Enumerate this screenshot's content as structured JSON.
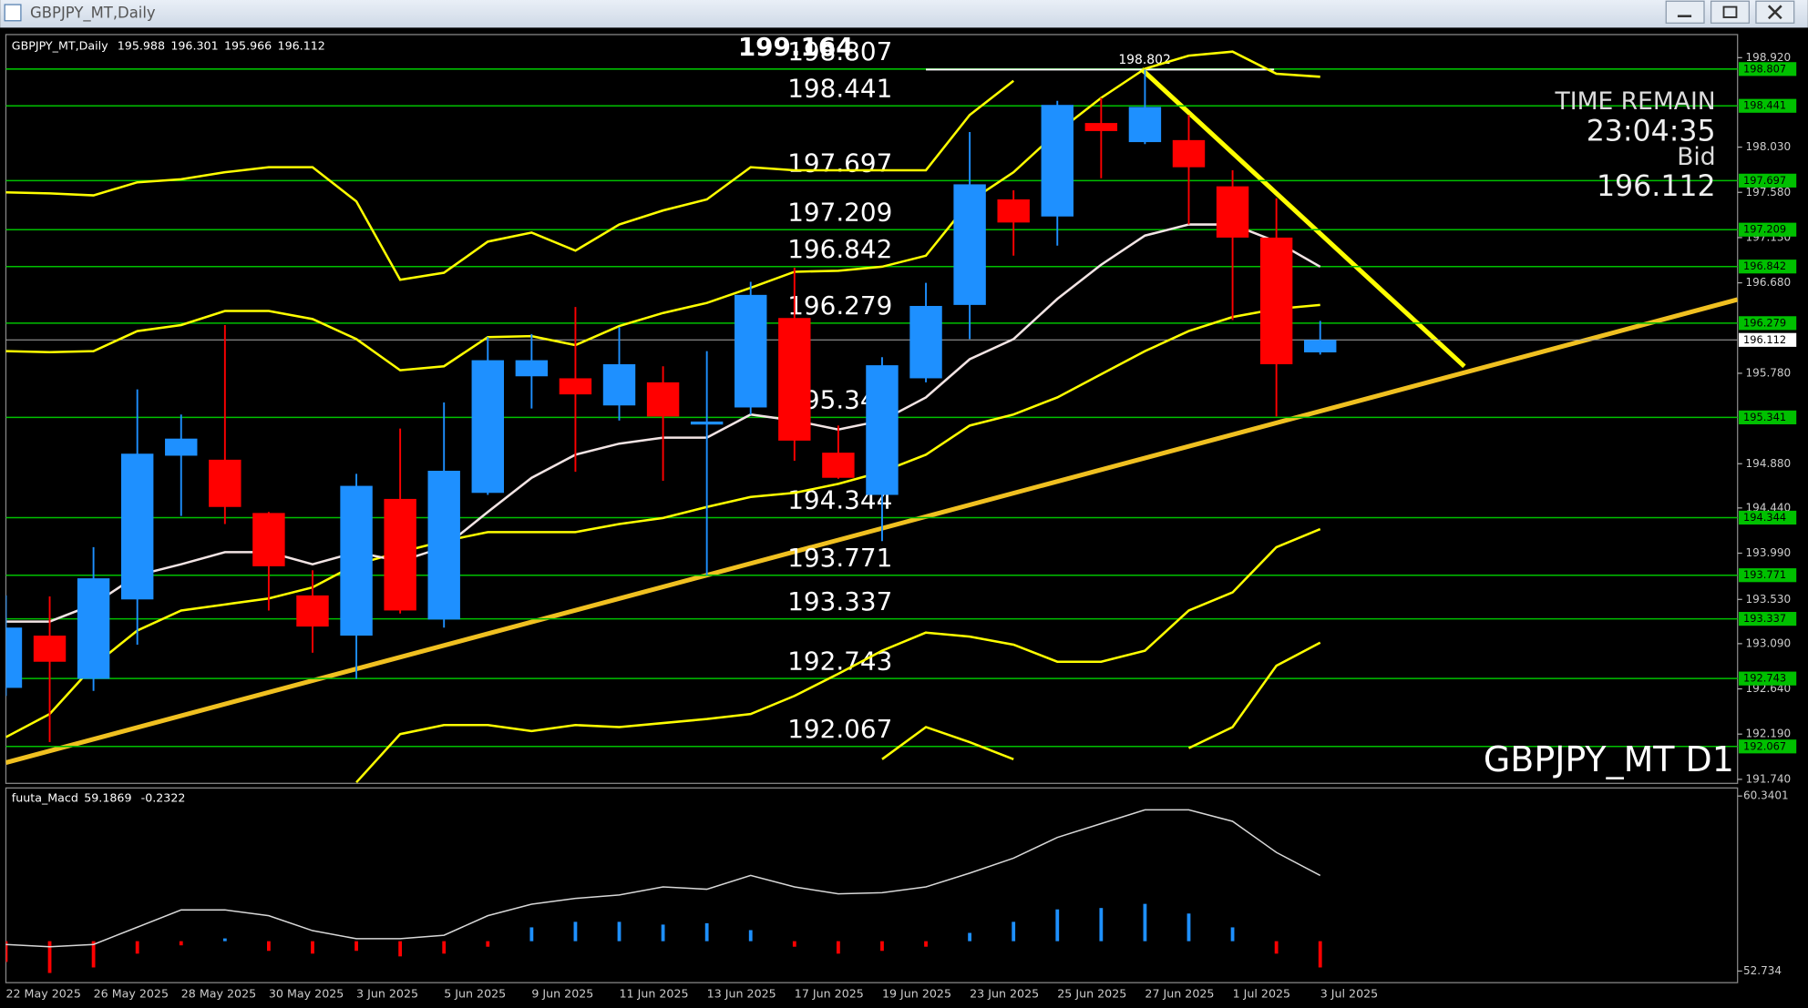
{
  "chart_data": [
    {
      "type": "candlestick",
      "title": "GBPJPY_MT,Daily",
      "categories": [
        "22 May 2025",
        null,
        "26 May 2025",
        null,
        "28 May 2025",
        null,
        "30 May 2025",
        null,
        "3 Jun 2025",
        null,
        "5 Jun 2025",
        null,
        "9 Jun 2025",
        null,
        "11 Jun 2025",
        null,
        "13 Jun 2025",
        null,
        "17 Jun 2025",
        null,
        "19 Jun 2025",
        null,
        "23 Jun 2025",
        null,
        "25 Jun 2025",
        null,
        "27 Jun 2025",
        null,
        "1 Jul 2025",
        null,
        "3 Jul 2025"
      ],
      "open": [
        192.65,
        193.17,
        192.74,
        193.53,
        194.96,
        194.92,
        194.39,
        193.57,
        193.17,
        194.53,
        193.33,
        194.59,
        195.75,
        195.73,
        195.46,
        195.69,
        195.27,
        195.44,
        196.33,
        194.99,
        194.57,
        195.73,
        196.46,
        197.51,
        197.34,
        198.27,
        198.08,
        198.1,
        197.64,
        197.13,
        195.988
      ],
      "high": [
        193.57,
        193.56,
        194.05,
        195.62,
        195.37,
        196.26,
        194.4,
        193.82,
        194.78,
        195.23,
        195.49,
        196.14,
        196.17,
        196.44,
        196.24,
        195.85,
        196.0,
        196.69,
        196.83,
        195.26,
        195.94,
        196.68,
        198.18,
        197.6,
        198.49,
        198.52,
        198.802,
        198.35,
        197.8,
        197.52,
        196.301
      ],
      "low": [
        192.57,
        192.11,
        192.62,
        193.08,
        194.36,
        194.28,
        193.42,
        193.0,
        192.74,
        193.39,
        193.25,
        194.57,
        195.43,
        194.8,
        195.31,
        194.71,
        193.77,
        195.37,
        194.91,
        194.73,
        194.11,
        195.69,
        196.12,
        196.95,
        197.05,
        197.72,
        198.06,
        197.26,
        196.31,
        195.35,
        195.966
      ],
      "close": [
        193.25,
        192.91,
        193.74,
        194.98,
        195.13,
        194.45,
        193.86,
        193.26,
        194.66,
        193.42,
        194.81,
        195.91,
        195.91,
        195.57,
        195.87,
        195.35,
        195.3,
        196.56,
        195.11,
        194.74,
        195.86,
        196.45,
        197.66,
        197.28,
        198.45,
        198.19,
        198.43,
        197.83,
        197.13,
        195.87,
        196.112
      ],
      "up_color": "#1e90ff",
      "down_color": "#ff0000",
      "ylim": [
        191.7,
        199.15
      ],
      "yticks": [
        {
          "value": 198.92,
          "label": "198.920"
        },
        {
          "value": 198.03,
          "label": "198.030"
        },
        {
          "value": 197.58,
          "label": "197.580"
        },
        {
          "value": 197.13,
          "label": "197.130"
        },
        {
          "value": 196.68,
          "label": "196.680"
        },
        {
          "value": 195.78,
          "label": "195.780"
        },
        {
          "value": 194.88,
          "label": "194.880"
        },
        {
          "value": 194.44,
          "label": "194.440"
        },
        {
          "value": 193.99,
          "label": "193.990"
        },
        {
          "value": 193.53,
          "label": "193.530"
        },
        {
          "value": 193.09,
          "label": "193.090"
        },
        {
          "value": 192.64,
          "label": "192.640"
        },
        {
          "value": 192.19,
          "label": "192.190"
        },
        {
          "value": 191.74,
          "label": "191.740"
        }
      ],
      "levels": {
        "color": "#00c000",
        "values": [
          198.807,
          198.441,
          197.697,
          197.209,
          196.842,
          196.279,
          195.341,
          194.344,
          193.771,
          193.337,
          192.743,
          192.067
        ]
      },
      "top_label": 199.164,
      "high_marker": 198.802,
      "lines": [
        {
          "color": "#ffff00",
          "values": [
            197.58,
            197.57,
            197.55,
            197.68,
            197.71,
            197.78,
            197.83,
            197.83,
            197.49,
            196.71,
            196.78,
            197.09,
            197.18,
            197.0,
            197.26,
            197.4,
            197.51,
            197.83,
            197.8,
            197.8,
            197.8,
            197.8,
            198.35,
            198.69,
            null,
            null,
            null,
            null,
            null,
            null,
            null
          ]
        },
        {
          "color": "#ffff00",
          "values": [
            196.0,
            195.99,
            196.0,
            196.2,
            196.26,
            196.4,
            196.4,
            196.32,
            196.12,
            195.81,
            195.85,
            196.14,
            196.15,
            196.06,
            196.25,
            196.38,
            196.48,
            196.63,
            196.79,
            196.8,
            196.84,
            196.95,
            197.49,
            197.78,
            198.18,
            198.52,
            198.81,
            198.94,
            198.98,
            198.76,
            198.73
          ]
        },
        {
          "color": "#ffff00",
          "values": [
            192.16,
            192.39,
            192.87,
            193.22,
            193.42,
            193.48,
            193.54,
            193.65,
            193.88,
            194.0,
            194.11,
            194.2,
            194.2,
            194.2,
            194.28,
            194.34,
            194.45,
            194.55,
            194.59,
            194.68,
            194.8,
            194.97,
            195.26,
            195.37,
            195.54,
            195.77,
            196.0,
            196.2,
            196.34,
            196.42,
            196.46
          ]
        },
        {
          "color": "#ffff00",
          "values": [
            null,
            null,
            null,
            null,
            null,
            null,
            null,
            null,
            191.71,
            192.19,
            192.28,
            192.28,
            192.22,
            192.28,
            192.26,
            192.3,
            192.34,
            192.39,
            192.57,
            192.79,
            193.02,
            193.2,
            193.16,
            193.08,
            192.91,
            192.91,
            193.02,
            193.42,
            193.6,
            194.05,
            194.23
          ]
        },
        {
          "color": "#ffff00",
          "values": [
            null,
            null,
            null,
            null,
            null,
            null,
            null,
            null,
            null,
            null,
            null,
            null,
            null,
            null,
            null,
            null,
            null,
            null,
            null,
            null,
            191.94,
            192.26,
            192.11,
            191.94,
            null,
            null,
            null,
            192.05,
            192.26,
            192.87,
            193.1
          ]
        },
        {
          "color": "#f2e4e4",
          "values": [
            193.31,
            193.31,
            193.48,
            193.77,
            193.88,
            194.0,
            194.0,
            193.88,
            194.0,
            193.91,
            194.05,
            194.4,
            194.74,
            194.97,
            195.08,
            195.14,
            195.14,
            195.37,
            195.31,
            195.22,
            195.31,
            195.54,
            195.92,
            196.12,
            196.52,
            196.86,
            197.15,
            197.26,
            197.26,
            197.09,
            196.84
          ]
        }
      ],
      "info": {
        "time_remain_label": "TIME REMAIN",
        "time_remain": "23:04:35",
        "bid_label": "Bid"
      },
      "symbol_label": "GBPJPY_MT D1"
    },
    {
      "type": "bar",
      "name": "fuuta_Macd",
      "main": 59.1869,
      "signal": -0.2322,
      "ylim": [
        52.23,
        60.64
      ],
      "yticks": [
        60.3401,
        52.734
      ],
      "y2lim": [
        -0.3,
        1.1
      ],
      "series": [
        {
          "axis": "y2",
          "up_color": "#1e90ff",
          "down_color": "#ff0000",
          "values": [
            -0.15,
            -0.23,
            -0.19,
            -0.09,
            -0.03,
            0.02,
            -0.07,
            -0.09,
            -0.07,
            -0.11,
            -0.09,
            -0.04,
            0.1,
            0.14,
            0.14,
            0.12,
            0.13,
            0.08,
            -0.04,
            -0.09,
            -0.07,
            -0.04,
            0.06,
            0.14,
            0.23,
            0.24,
            0.27,
            0.2,
            0.1,
            -0.09,
            -0.19
          ]
        },
        {
          "color": "#d8d8d8",
          "values": [
            53.89,
            53.79,
            53.89,
            54.64,
            55.39,
            55.39,
            55.14,
            54.49,
            54.14,
            54.14,
            54.29,
            55.14,
            55.64,
            55.89,
            56.04,
            56.39,
            56.29,
            56.89,
            56.39,
            56.09,
            56.14,
            56.39,
            56.99,
            57.64,
            58.54,
            59.14,
            59.74,
            59.74,
            59.24,
            57.89,
            56.89
          ]
        }
      ]
    }
  ]
}
